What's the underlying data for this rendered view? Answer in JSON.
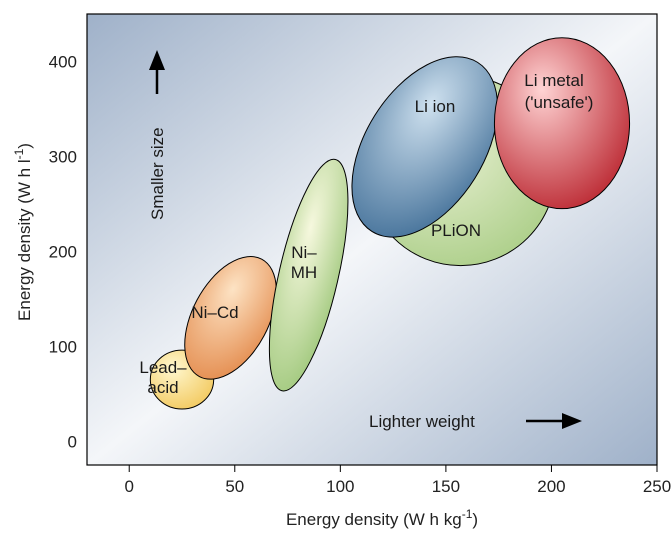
{
  "chart_data": {
    "type": "scatter",
    "title": "",
    "xlabel": "Energy density (W h kg",
    "xlabel_sup": "-1",
    "xlabel_end": ")",
    "ylabel": "Energy density (W h l",
    "ylabel_sup": "-1",
    "ylabel_end": ")",
    "xlim": [
      -20,
      250
    ],
    "ylim": [
      -25,
      450
    ],
    "x_ticks": [
      0,
      50,
      100,
      150,
      200,
      250
    ],
    "y_ticks": [
      0,
      100,
      200,
      300,
      400
    ],
    "grid": false,
    "regions": [
      {
        "id": "lead-acid",
        "lines": [
          "Lead–",
          "acid"
        ],
        "cx": 25,
        "cy": 65,
        "rx": 15,
        "ry": 31,
        "rotate": 0,
        "color_light": "#fff8d0",
        "color_dark": "#f2c75a"
      },
      {
        "id": "ni-cd",
        "lines": [
          "Ni–Cd"
        ],
        "cx": 48,
        "cy": 130,
        "rx": 18,
        "ry": 70,
        "rotate": 28,
        "color_light": "#fde3c4",
        "color_dark": "#e3894a"
      },
      {
        "id": "ni-mh",
        "lines": [
          "Ni–",
          "MH"
        ],
        "cx": 85,
        "cy": 175,
        "rx": 14,
        "ry": 125,
        "rotate": 13,
        "color_light": "#f6f8de",
        "color_dark": "#9ec77a"
      },
      {
        "id": "plion",
        "lines": [
          "PLiON"
        ],
        "cx": 157,
        "cy": 285,
        "rx": 45,
        "ry": 100,
        "rotate": 0,
        "color_light": "#f0f4dc",
        "color_dark": "#a9cd85"
      },
      {
        "id": "li-ion",
        "lines": [
          "Li ion"
        ],
        "cx": 140,
        "cy": 310,
        "rx": 28,
        "ry": 105,
        "rotate": 32,
        "color_light": "#cfe1ef",
        "color_dark": "#3f6d96"
      },
      {
        "id": "li-metal",
        "lines": [
          "Li metal",
          "('unsafe')"
        ],
        "cx": 205,
        "cy": 335,
        "rx": 32,
        "ry": 90,
        "rotate": 0,
        "color_light": "#ffd4d4",
        "color_dark": "#b8202a"
      }
    ]
  },
  "annotations": {
    "smaller_size": "Smaller size",
    "lighter_weight": "Lighter weight"
  },
  "colors": {
    "background_dark": "#9fb1c9",
    "background_light": "#f4f6f9",
    "axis": "#000000"
  }
}
